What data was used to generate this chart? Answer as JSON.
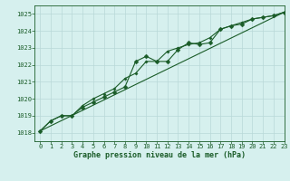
{
  "xlabel": "Graphe pression niveau de la mer (hPa)",
  "ylim": [
    1017.5,
    1025.5
  ],
  "xlim": [
    -0.5,
    23
  ],
  "yticks": [
    1018,
    1019,
    1020,
    1021,
    1022,
    1023,
    1024,
    1025
  ],
  "xticks": [
    0,
    1,
    2,
    3,
    4,
    5,
    6,
    7,
    8,
    9,
    10,
    11,
    12,
    13,
    14,
    15,
    16,
    17,
    18,
    19,
    20,
    21,
    22,
    23
  ],
  "bg_color": "#d6f0ee",
  "grid_color": "#b8d8d8",
  "line_color": "#1a5c28",
  "line1": [
    1018.1,
    1018.7,
    1019.0,
    1019.0,
    1019.5,
    1019.8,
    1020.1,
    1020.4,
    1020.7,
    1022.2,
    1022.5,
    1022.2,
    1022.2,
    1022.9,
    1023.3,
    1023.2,
    1023.3,
    1024.1,
    1024.3,
    1024.4,
    1024.7,
    1024.8,
    1024.9,
    1025.1
  ],
  "line2": [
    1018.1,
    1018.7,
    1019.0,
    1019.0,
    1019.6,
    1020.0,
    1020.3,
    1020.6,
    1021.2,
    1021.5,
    1022.2,
    1022.2,
    1022.8,
    1023.0,
    1023.2,
    1023.3,
    1023.6,
    1024.1,
    1024.3,
    1024.5,
    1024.7,
    1024.8,
    1024.9,
    1025.1
  ],
  "line3_x": [
    0,
    23
  ],
  "line3_y": [
    1018.1,
    1025.1
  ],
  "marker_size": 2.5,
  "linewidth": 0.8,
  "font_color": "#1a5c28",
  "tick_fontsize": 5.0,
  "xlabel_fontsize": 6.0
}
